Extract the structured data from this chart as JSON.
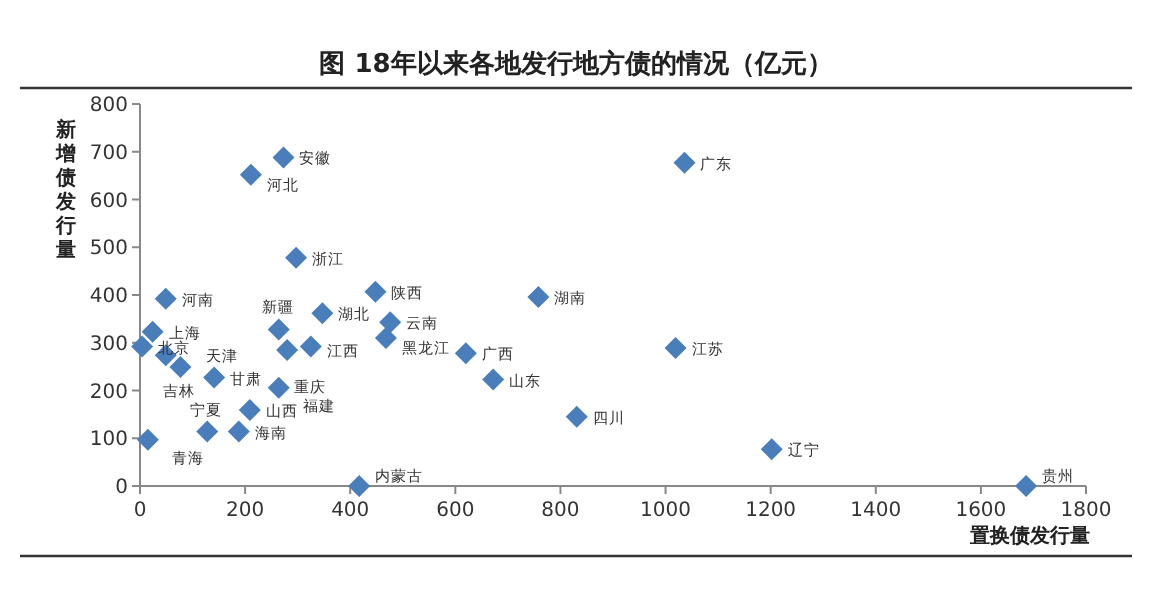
{
  "chart_data": {
    "type": "scatter",
    "title": "图 18年以来各地发行地方债的情况（亿元）",
    "xlabel": "置换债发行量",
    "ylabel": "新增债发行量",
    "x": [
      273,
      211,
      297,
      49,
      448,
      758,
      347,
      476,
      468,
      24,
      264,
      4,
      49,
      77,
      141,
      280,
      325,
      264,
      209,
      15,
      128,
      188,
      417,
      620,
      672,
      831,
      1202,
      1686,
      1036,
      1019
    ],
    "values": [
      688,
      652,
      478,
      392,
      407,
      396,
      362,
      343,
      310,
      323,
      328,
      292,
      274,
      249,
      227,
      285,
      292,
      206,
      159,
      97,
      114,
      114,
      0,
      278,
      223,
      145,
      77,
      0,
      677,
      289
    ],
    "color": "#4a7ebb",
    "marker": "diamond",
    "legend": false,
    "grid": false,
    "xlim": [
      0,
      1800
    ],
    "ylim": [
      0,
      800
    ],
    "xticks": [
      0,
      200,
      400,
      600,
      800,
      1000,
      1200,
      1400,
      1600,
      1800
    ],
    "yticks": [
      0,
      100,
      200,
      300,
      400,
      500,
      600,
      700,
      800
    ],
    "annotations": [
      {
        "text": "安徽",
        "x": 273,
        "y": 688
      },
      {
        "text": "河北",
        "x": 211,
        "y": 652
      },
      {
        "text": "浙江",
        "x": 297,
        "y": 478
      },
      {
        "text": "河南",
        "x": 49,
        "y": 392
      },
      {
        "text": "陕西",
        "x": 448,
        "y": 407
      },
      {
        "text": "湖南",
        "x": 758,
        "y": 396
      },
      {
        "text": "湖北",
        "x": 347,
        "y": 362
      },
      {
        "text": "云南",
        "x": 476,
        "y": 343
      },
      {
        "text": "黑龙江",
        "x": 468,
        "y": 310
      },
      {
        "text": "上海",
        "x": 24,
        "y": 323
      },
      {
        "text": "新疆",
        "x": 264,
        "y": 328
      },
      {
        "text": "北京",
        "x": 4,
        "y": 292
      },
      {
        "text": "天津",
        "x": 49,
        "y": 274
      },
      {
        "text": "吉林",
        "x": 77,
        "y": 249
      },
      {
        "text": "甘肃",
        "x": 141,
        "y": 227
      },
      {
        "text": "江西",
        "x": 280,
        "y": 285
      },
      {
        "text": "重庆",
        "x": 325,
        "y": 292
      },
      {
        "text": "福建",
        "x": 264,
        "y": 206
      },
      {
        "text": "山西",
        "x": 209,
        "y": 159
      },
      {
        "text": "青海",
        "x": 15,
        "y": 97
      },
      {
        "text": "宁夏",
        "x": 128,
        "y": 114
      },
      {
        "text": "海南",
        "x": 188,
        "y": 114
      },
      {
        "text": "内蒙古",
        "x": 417,
        "y": 0
      },
      {
        "text": "广西",
        "x": 620,
        "y": 278
      },
      {
        "text": "山东",
        "x": 672,
        "y": 223
      },
      {
        "text": "四川",
        "x": 831,
        "y": 145
      },
      {
        "text": "辽宁",
        "x": 1202,
        "y": 77
      },
      {
        "text": "贵州",
        "x": 1686,
        "y": 0
      },
      {
        "text": "广东",
        "x": 1036,
        "y": 677
      },
      {
        "text": "江苏",
        "x": 1019,
        "y": 289
      }
    ]
  }
}
